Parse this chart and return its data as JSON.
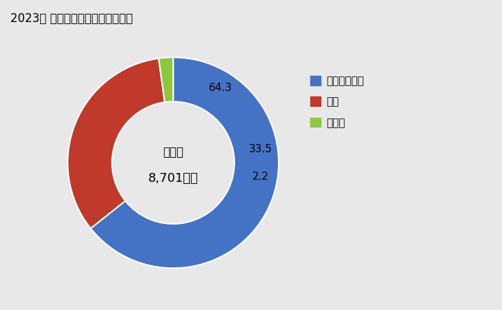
{
  "title": "2023年 輸出相手国のシェア（％）",
  "slices": [
    64.3,
    33.5,
    2.2
  ],
  "colors": [
    "#4472C4",
    "#C0392B",
    "#8DC63F"
  ],
  "slice_labels": [
    "64.3",
    "33.5",
    "2.2"
  ],
  "center_line1": "総　額",
  "center_line2": "8,701万円",
  "legend_labels": [
    "インドネシア",
    "米国",
    "その他"
  ],
  "background_color": "#FFFFFF",
  "fig_bg_color": "#E8E8E8",
  "donut_width": 0.42
}
